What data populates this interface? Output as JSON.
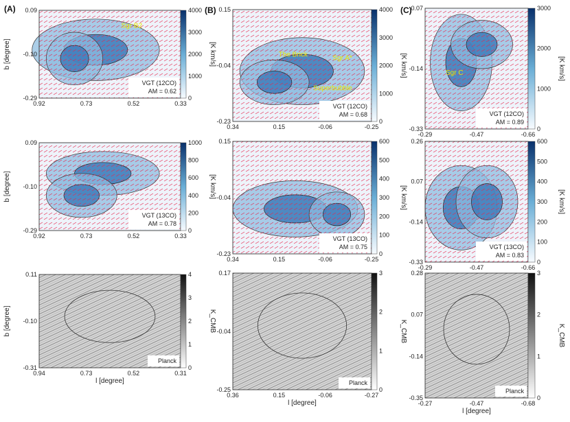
{
  "figure": {
    "letters": [
      "(A)",
      "(B)",
      "(C)"
    ],
    "cbar_label_co": "[K km/s]",
    "cbar_label_cmb": "K_CMB",
    "xlabel": "l [degree]",
    "ylabel": "b [degree]"
  },
  "colors": {
    "blue_high": "#08306b",
    "blue_low": "#deebf7",
    "vector": "#e8264d",
    "gray_high": "#1a1a1a",
    "annotation": "#e8e800"
  },
  "chart_data": [
    {
      "id": "A1",
      "type": "heatmap",
      "x_ticks": [
        "0.92",
        "0.73",
        "0.52",
        "0.33"
      ],
      "y_ticks": [
        "0.09",
        "-0.10",
        "-0.29"
      ],
      "cbar_ticks": [
        "0",
        "1000",
        "2000",
        "3000",
        "4000"
      ],
      "legend_lines": [
        "VGT (12CO)",
        "AM = 0.62"
      ],
      "annotations": [
        {
          "text": "Sgr B2"
        }
      ]
    },
    {
      "id": "A2",
      "type": "heatmap",
      "x_ticks": [
        "0.92",
        "0.73",
        "0.52",
        "0.33"
      ],
      "y_ticks": [
        "0.09",
        "-0.10",
        "-0.29"
      ],
      "cbar_ticks": [
        "0",
        "200",
        "400",
        "600",
        "800",
        "1000"
      ],
      "legend_lines": [
        "VGT (13CO)",
        "AM = 0.78"
      ],
      "annotations": []
    },
    {
      "id": "A3",
      "type": "heatmap",
      "x_ticks": [
        "0.94",
        "0.73",
        "0.52",
        "0.31"
      ],
      "y_ticks": [
        "0.11",
        "-0.10",
        "-0.31"
      ],
      "cbar_ticks": [
        "0",
        "1",
        "2",
        "3",
        "4"
      ],
      "legend_lines": [
        "Planck"
      ],
      "annotations": []
    },
    {
      "id": "B1",
      "type": "heatmap",
      "x_ticks": [
        "0.34",
        "0.15",
        "-0.06",
        "-0.25"
      ],
      "y_ticks": [
        "0.15",
        "-0.04",
        "-0.23"
      ],
      "cbar_ticks": [
        "0",
        "1000",
        "2000",
        "3000",
        "4000"
      ],
      "legend_lines": [
        "VGT (12CO)",
        "AM = 0.68"
      ],
      "annotations": [
        {
          "text": "The Brick"
        },
        {
          "text": "Sgr A*"
        },
        {
          "text": "Superbubble"
        }
      ]
    },
    {
      "id": "B2",
      "type": "heatmap",
      "x_ticks": [
        "0.34",
        "0.15",
        "-0.06",
        "-0.25"
      ],
      "y_ticks": [
        "0.15",
        "-0.04",
        "-0.23"
      ],
      "cbar_ticks": [
        "0",
        "100",
        "200",
        "300",
        "400",
        "500",
        "600"
      ],
      "legend_lines": [
        "VGT (13CO)",
        "AM = 0.75"
      ],
      "annotations": []
    },
    {
      "id": "B3",
      "type": "heatmap",
      "x_ticks": [
        "0.36",
        "0.15",
        "-0.06",
        "-0.27"
      ],
      "y_ticks": [
        "0.17",
        "-0.04",
        "-0.25"
      ],
      "cbar_ticks": [
        "0",
        "1",
        "2",
        "3"
      ],
      "legend_lines": [
        "Planck"
      ],
      "annotations": []
    },
    {
      "id": "C1",
      "type": "heatmap",
      "x_ticks": [
        "-0.29",
        "-0.47",
        "-0.66"
      ],
      "y_ticks": [
        "0.07",
        "-0.14",
        "-0.33"
      ],
      "cbar_ticks": [
        "0",
        "1000",
        "2000",
        "3000"
      ],
      "legend_lines": [
        "VGT (12CO)",
        "AM = 0.89"
      ],
      "annotations": [
        {
          "text": "Sgr C"
        }
      ]
    },
    {
      "id": "C2",
      "type": "heatmap",
      "x_ticks": [
        "-0.29",
        "-0.47",
        "-0.66"
      ],
      "y_ticks": [
        "0.26",
        "0.07",
        "-0.14",
        "-0.33"
      ],
      "cbar_ticks": [
        "0",
        "100",
        "200",
        "300",
        "400",
        "500",
        "600"
      ],
      "legend_lines": [
        "VGT (13CO)",
        "AM = 0.83"
      ],
      "annotations": []
    },
    {
      "id": "C3",
      "type": "heatmap",
      "x_ticks": [
        "-0.27",
        "-0.47",
        "-0.68"
      ],
      "y_ticks": [
        "0.28",
        "0.07",
        "-0.14",
        "-0.35"
      ],
      "cbar_ticks": [
        "0",
        "1",
        "2",
        "3"
      ],
      "legend_lines": [
        "Planck"
      ],
      "annotations": []
    }
  ]
}
